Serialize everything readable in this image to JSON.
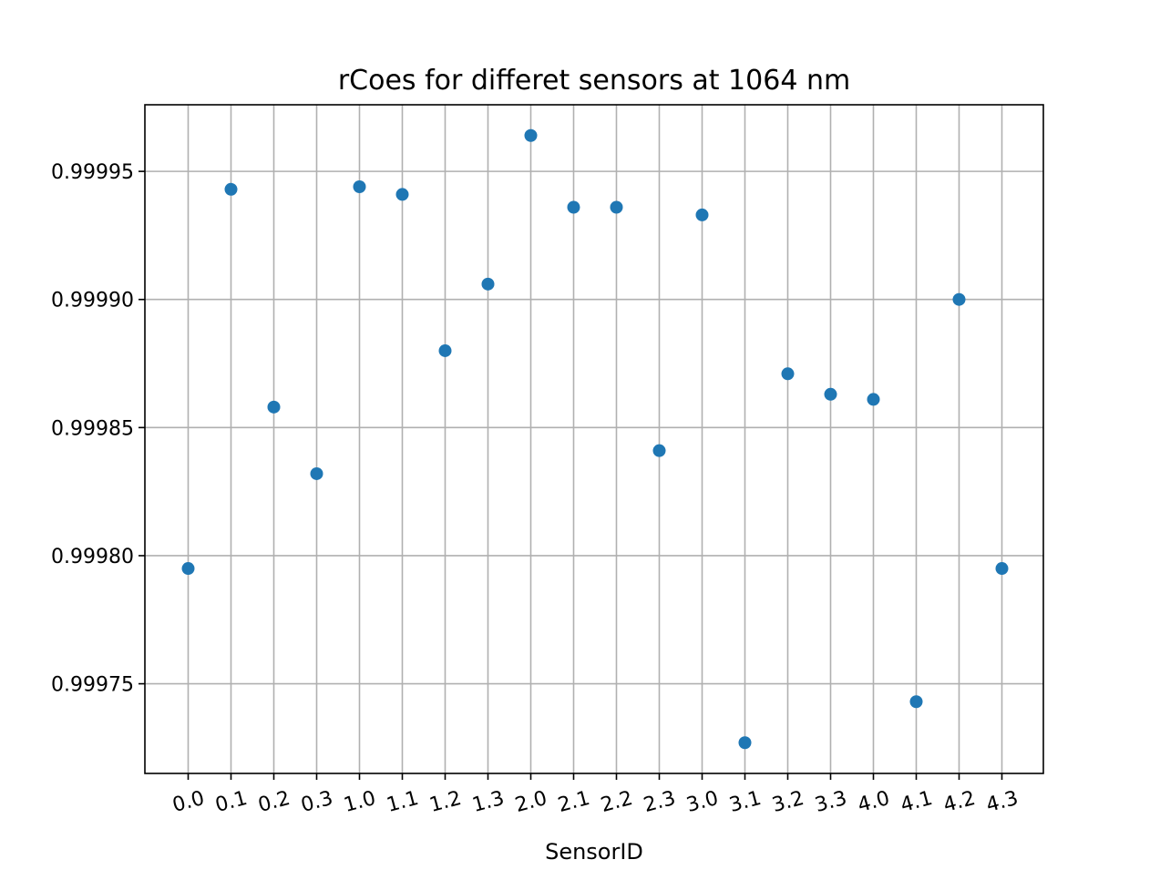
{
  "chart_data": {
    "type": "scatter",
    "title": "rCoes for differet sensors at 1064 nm",
    "xlabel": "SensorID",
    "ylabel": "",
    "categories": [
      "0.0",
      "0.1",
      "0.2",
      "0.3",
      "1.0",
      "1.1",
      "1.2",
      "1.3",
      "2.0",
      "2.1",
      "2.2",
      "2.3",
      "3.0",
      "3.1",
      "3.2",
      "3.3",
      "4.0",
      "4.1",
      "4.2",
      "4.3"
    ],
    "series": [
      {
        "values": [
          0.999795,
          0.999943,
          0.999858,
          0.999832,
          0.999944,
          0.999941,
          0.99988,
          0.999906,
          0.999964,
          0.999936,
          0.999936,
          0.999841,
          0.999933,
          0.999727,
          0.999871,
          0.999863,
          0.999861,
          0.999743,
          0.9999,
          0.999795
        ],
        "color": "#1f77b4"
      }
    ],
    "ylim": [
      0.999715,
      0.999976
    ],
    "yticks": [
      0.99975,
      0.9998,
      0.99985,
      0.9999,
      0.99995
    ],
    "ytick_labels": [
      "0.99975",
      "0.99980",
      "0.99985",
      "0.99990",
      "0.99995"
    ],
    "grid": true,
    "xtick_rotation": "rotated"
  }
}
